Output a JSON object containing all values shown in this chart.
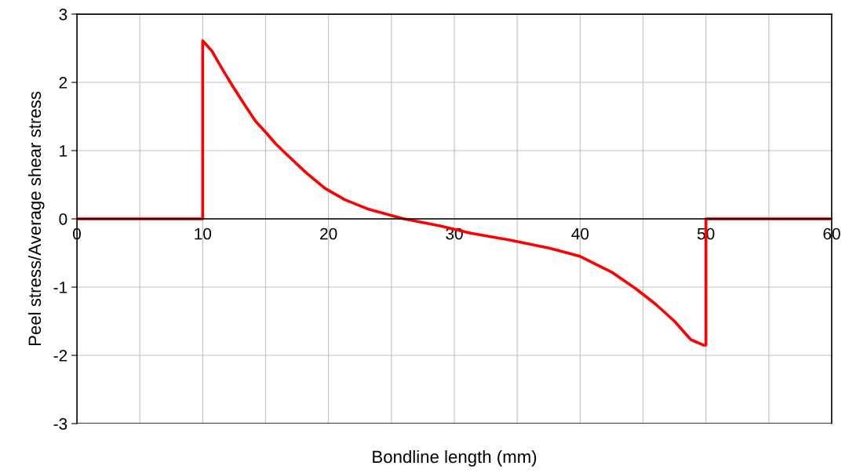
{
  "chart_data": {
    "type": "line",
    "xlabel": "Bondline length (mm)",
    "ylabel": "Peel stress/Average shear stress",
    "series": [
      {
        "color": "#ff0000",
        "x": [
          0,
          10,
          10,
          10.73,
          11.54,
          12.4,
          13.2,
          14.2,
          15.1,
          15.8,
          16.7,
          18.2,
          19.7,
          21.3,
          23.2,
          25.4,
          26.0,
          28.8,
          31.3,
          34.4,
          37.6,
          40.0,
          42.5,
          44.4,
          46.0,
          47.5,
          48.8,
          49.8,
          50,
          50,
          60
        ],
        "values": [
          0,
          0,
          2.61,
          2.46,
          2.2,
          1.94,
          1.71,
          1.43,
          1.25,
          1.1,
          0.94,
          0.68,
          0.45,
          0.28,
          0.14,
          0.03,
          0,
          -0.1,
          -0.21,
          -0.31,
          -0.43,
          -0.55,
          -0.78,
          -1.02,
          -1.25,
          -1.5,
          -1.77,
          -1.85,
          -1.85,
          0,
          0
        ]
      }
    ],
    "xlim": [
      0,
      60
    ],
    "ylim": [
      -3,
      3
    ],
    "xticks": [
      0,
      {
        "value": 5,
        "label": null
      },
      10,
      {
        "value": 15,
        "label": null
      },
      20,
      {
        "value": 25,
        "label": null
      },
      30,
      {
        "value": 35,
        "label": null
      },
      40,
      {
        "value": 45,
        "label": null
      },
      50,
      {
        "value": 55,
        "label": null
      },
      60
    ],
    "yticks": [
      -3,
      -2,
      -1,
      0,
      1,
      2,
      3
    ],
    "grid": true,
    "marker": "none",
    "line_style": "solid"
  }
}
